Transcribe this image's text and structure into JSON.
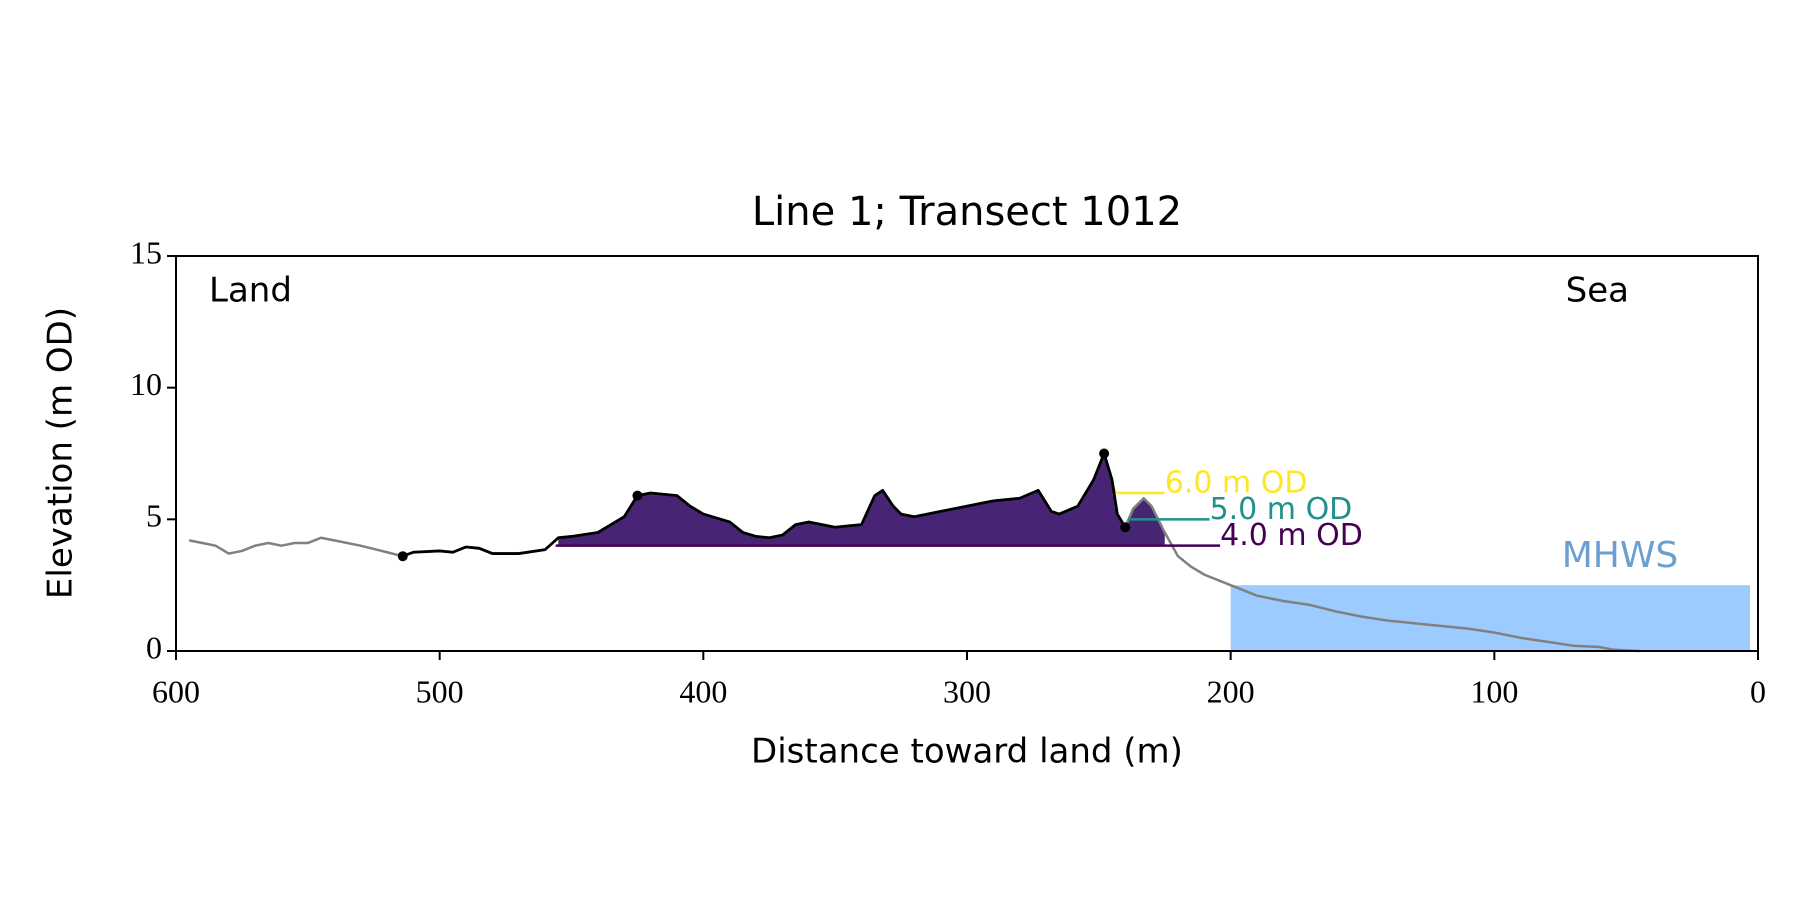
{
  "chart_data": {
    "type": "line",
    "title": "Line 1; Transect 1012",
    "xlabel": "Distance toward land (m)",
    "ylabel": "Elevation (m OD)",
    "xlim": [
      600,
      0
    ],
    "ylim": [
      0,
      15
    ],
    "xticks": [
      600,
      500,
      400,
      300,
      200,
      100,
      0
    ],
    "yticks": [
      0,
      5,
      10,
      15
    ],
    "annotations": {
      "land": "Land",
      "sea": "Sea"
    },
    "profile": {
      "color": "#808080",
      "dune_color": "#000000",
      "dune_range": [
        514,
        240
      ],
      "x": [
        595,
        590,
        585,
        580,
        575,
        570,
        565,
        560,
        555,
        550,
        545,
        540,
        530,
        520,
        514,
        510,
        500,
        495,
        490,
        485,
        480,
        470,
        460,
        455,
        450,
        440,
        430,
        425,
        420,
        410,
        405,
        400,
        390,
        385,
        380,
        375,
        370,
        365,
        360,
        355,
        350,
        345,
        340,
        335,
        332,
        328,
        325,
        320,
        310,
        300,
        290,
        280,
        273,
        268,
        265,
        258,
        252,
        248,
        245,
        243,
        240,
        237,
        233,
        230,
        225,
        220,
        215,
        210,
        200,
        195,
        190,
        180,
        170,
        160,
        150,
        140,
        130,
        120,
        110,
        100,
        90,
        80,
        70,
        60,
        55,
        45
      ],
      "values": [
        4.2,
        4.1,
        4.0,
        3.7,
        3.8,
        4.0,
        4.1,
        4.0,
        4.1,
        4.1,
        4.3,
        4.2,
        4.0,
        3.75,
        3.6,
        3.75,
        3.8,
        3.75,
        3.95,
        3.9,
        3.7,
        3.7,
        3.85,
        4.3,
        4.35,
        4.5,
        5.1,
        5.9,
        6.0,
        5.9,
        5.5,
        5.2,
        4.9,
        4.5,
        4.35,
        4.3,
        4.4,
        4.8,
        4.9,
        4.8,
        4.7,
        4.75,
        4.8,
        5.9,
        6.1,
        5.5,
        5.2,
        5.1,
        5.3,
        5.5,
        5.7,
        5.8,
        6.1,
        5.3,
        5.2,
        5.5,
        6.5,
        7.5,
        6.5,
        5.2,
        4.7,
        5.4,
        5.8,
        5.5,
        4.5,
        3.6,
        3.2,
        2.9,
        2.5,
        2.3,
        2.1,
        1.9,
        1.75,
        1.5,
        1.3,
        1.15,
        1.05,
        0.95,
        0.85,
        0.7,
        0.5,
        0.35,
        0.2,
        0.15,
        0.05,
        0
      ]
    },
    "thresholds": [
      {
        "label": "6.0 m OD",
        "value": 6.0,
        "color": "#fde725",
        "fill_range": [
          255,
          243
        ],
        "line_range": [
          243,
          225
        ]
      },
      {
        "label": "5.0 m OD",
        "value": 5.0,
        "color": "#21918c",
        "fill_range": [
          237,
          229
        ],
        "line_range": [
          239,
          208
        ]
      },
      {
        "label": "4.0 m OD",
        "value": 4.0,
        "color": "#440154",
        "fill_color": "#472474",
        "fill_range": [
          455,
          225
        ],
        "line_range": [
          456,
          204
        ]
      }
    ],
    "markers": {
      "color": "#000000",
      "x": [
        514,
        425,
        248,
        240
      ],
      "values": [
        3.6,
        5.9,
        7.5,
        4.7
      ]
    },
    "mhws": {
      "label": "MHWS",
      "value": 2.5,
      "x": [
        200,
        3
      ],
      "color": "#9ecbff",
      "label_color": "#6b9fd1"
    }
  }
}
